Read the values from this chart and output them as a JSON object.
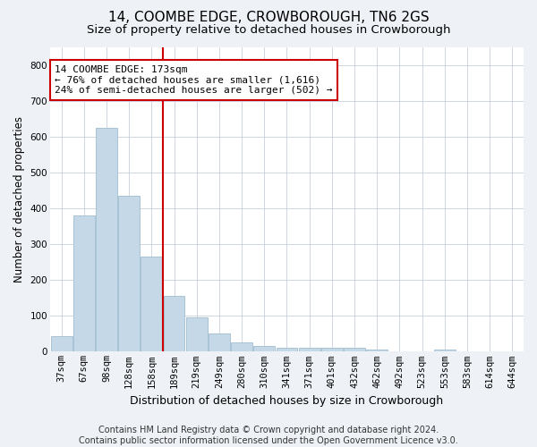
{
  "title": "14, COOMBE EDGE, CROWBOROUGH, TN6 2GS",
  "subtitle": "Size of property relative to detached houses in Crowborough",
  "xlabel": "Distribution of detached houses by size in Crowborough",
  "ylabel": "Number of detached properties",
  "categories": [
    "37sqm",
    "67sqm",
    "98sqm",
    "128sqm",
    "158sqm",
    "189sqm",
    "219sqm",
    "249sqm",
    "280sqm",
    "310sqm",
    "341sqm",
    "371sqm",
    "401sqm",
    "432sqm",
    "462sqm",
    "492sqm",
    "523sqm",
    "553sqm",
    "583sqm",
    "614sqm",
    "644sqm"
  ],
  "values": [
    43,
    380,
    625,
    435,
    265,
    155,
    95,
    50,
    27,
    15,
    10,
    10,
    10,
    10,
    5,
    0,
    0,
    7,
    0,
    0,
    0
  ],
  "bar_color": "#c5d8e8",
  "bar_edge_color": "#a0bdd0",
  "vline_color": "#cc0000",
  "vline_x": 4.5,
  "annotation_line1": "14 COOMBE EDGE: 173sqm",
  "annotation_line2": "← 76% of detached houses are smaller (1,616)",
  "annotation_line3": "24% of semi-detached houses are larger (502) →",
  "annotation_box_color": "#ffffff",
  "annotation_box_edge": "#cc0000",
  "ylim": [
    0,
    850
  ],
  "yticks": [
    0,
    100,
    200,
    300,
    400,
    500,
    600,
    700,
    800
  ],
  "footer": "Contains HM Land Registry data © Crown copyright and database right 2024.\nContains public sector information licensed under the Open Government Licence v3.0.",
  "title_fontsize": 11,
  "subtitle_fontsize": 9.5,
  "xlabel_fontsize": 9,
  "ylabel_fontsize": 8.5,
  "tick_fontsize": 7.5,
  "annotation_fontsize": 8,
  "footer_fontsize": 7,
  "background_color": "#eef2f7",
  "plot_bg_color": "#ffffff",
  "grid_color": "#c8d0de"
}
